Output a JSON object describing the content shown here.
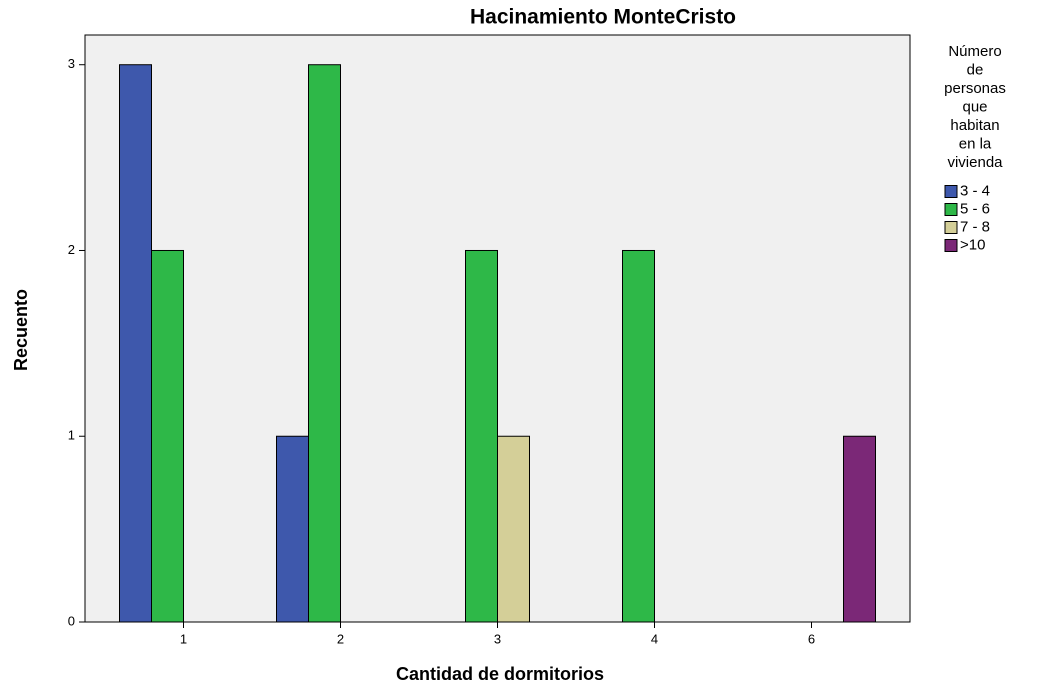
{
  "chart_data": {
    "type": "bar",
    "title": "Hacinamiento MonteCristo",
    "x_label": "Cantidad de dormitorios",
    "y_label": "Recuento",
    "legend_title": [
      "Número",
      "de",
      "personas",
      "que",
      "habitan",
      "en la",
      "vivienda"
    ],
    "categories": [
      "1",
      "2",
      "3",
      "4",
      "6"
    ],
    "series": [
      {
        "name": "3 - 4",
        "color": "#3e58ac",
        "values": [
          3,
          1,
          0,
          0,
          0
        ]
      },
      {
        "name": "5 - 6",
        "color": "#2eb848",
        "values": [
          2,
          3,
          2,
          2,
          0
        ]
      },
      {
        "name": "7 - 8",
        "color": "#d4cf98",
        "values": [
          0,
          0,
          1,
          0,
          0
        ]
      },
      {
        "name": ">10",
        "color": "#7b2877",
        "values": [
          0,
          0,
          0,
          0,
          1
        ]
      }
    ],
    "ylim": [
      0,
      3.16
    ],
    "yticks": [
      0,
      1,
      2,
      3
    ],
    "legend": "right"
  }
}
